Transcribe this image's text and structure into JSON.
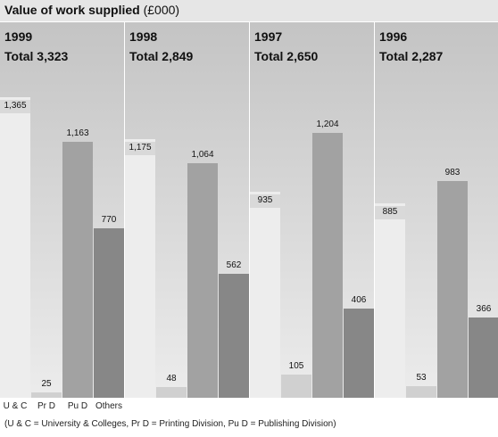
{
  "title": {
    "main": "Value of work supplied",
    "unit": "(£000)"
  },
  "chart_data": {
    "type": "bar",
    "title": "Value of work supplied (£000)",
    "categories": [
      "U & C",
      "Pr D",
      "Pu D",
      "Others"
    ],
    "panels": [
      {
        "year": "1999",
        "total_label": "Total 3,323",
        "total": 3323,
        "values": [
          1365,
          25,
          1163,
          770
        ],
        "labels": [
          "1,365",
          "25",
          "1,163",
          "770"
        ]
      },
      {
        "year": "1998",
        "total_label": "Total 2,849",
        "total": 2849,
        "values": [
          1175,
          48,
          1064,
          562
        ],
        "labels": [
          "1,175",
          "48",
          "1,064",
          "562"
        ]
      },
      {
        "year": "1997",
        "total_label": "Total 2,650",
        "total": 2650,
        "values": [
          935,
          105,
          1204,
          406
        ],
        "labels": [
          "935",
          "105",
          "1,204",
          "406"
        ]
      },
      {
        "year": "1996",
        "total_label": "Total 2,287",
        "total": 2287,
        "values": [
          885,
          53,
          983,
          366
        ],
        "labels": [
          "885",
          "53",
          "983",
          "366"
        ]
      }
    ],
    "grid": false,
    "legend": "none",
    "colors": {
      "panel_background": [
        "#c4c4c4",
        "#ececec"
      ],
      "bars": [
        "#ededed",
        "#d0d0d0",
        "#a2a2a2",
        "#878787"
      ],
      "label_band": "#d9d9d9"
    }
  },
  "footnote": "(U & C = University & Colleges, Pr D = Printing Division, Pu D = Publishing Division)"
}
